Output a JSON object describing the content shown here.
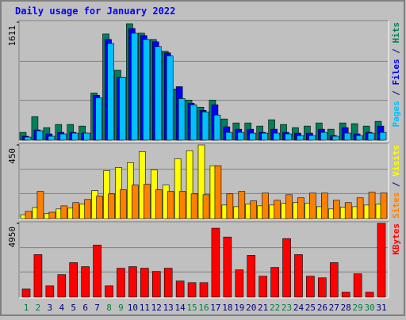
{
  "chart_data": {
    "type": "bar",
    "title": "Daily usage for January 2022",
    "categories": [
      "1",
      "2",
      "3",
      "4",
      "5",
      "6",
      "7",
      "8",
      "9",
      "10",
      "11",
      "12",
      "13",
      "14",
      "15",
      "16",
      "17",
      "18",
      "19",
      "20",
      "21",
      "22",
      "23",
      "24",
      "25",
      "26",
      "27",
      "28",
      "29",
      "30",
      "31"
    ],
    "category_colors": [
      "#008040",
      "#008040",
      "#000080",
      "#000080",
      "#000080",
      "#000080",
      "#000080",
      "#008040",
      "#008040",
      "#000080",
      "#000080",
      "#000080",
      "#000080",
      "#000080",
      "#008040",
      "#008040",
      "#000080",
      "#000080",
      "#000080",
      "#000080",
      "#000080",
      "#008040",
      "#008040",
      "#000080",
      "#000080",
      "#000080",
      "#000080",
      "#000080",
      "#008040",
      "#008040",
      "#000080"
    ],
    "legend_separator": " / ",
    "panels": [
      {
        "ylim": [
          0,
          1611
        ],
        "yticks": [
          1611
        ],
        "series": [
          {
            "name": "Pages",
            "color": "#00c0ff",
            "values": [
              43,
              129,
              54,
              86,
              97,
              97,
              580,
              1321,
              859,
              1460,
              1375,
              1278,
              1149,
              569,
              483,
              387,
              344,
              107,
              107,
              97,
              97,
              97,
              86,
              64,
              64,
              107,
              54,
              97,
              64,
              97,
              107
            ]
          },
          {
            "name": "Files",
            "color": "#0000ff",
            "values": [
              54,
              140,
              86,
              107,
              107,
              97,
              612,
              1375,
              859,
              1525,
              1428,
              1343,
              1192,
              731,
              505,
              408,
              483,
              183,
              150,
              150,
              107,
              150,
              107,
              97,
              97,
              150,
              64,
              172,
              86,
              107,
              193
            ]
          },
          {
            "name": "Hits",
            "color": "#00805c",
            "values": [
              107,
              322,
              172,
              215,
              215,
              193,
              644,
              1450,
              956,
              1590,
              1461,
              1375,
              1214,
              698,
              548,
              451,
              548,
              290,
              236,
              236,
              193,
              279,
              215,
              172,
              193,
              236,
              150,
              236,
              226,
              193,
              258
            ]
          }
        ]
      },
      {
        "ylim": [
          0,
          450
        ],
        "yticks": [
          450
        ],
        "series": [
          {
            "name": "Sites",
            "color": "#ff8000",
            "values": [
              44,
              166,
              39,
              78,
              98,
              117,
              137,
              151,
              176,
              205,
              210,
              176,
              166,
              166,
              151,
              146,
              323,
              151,
              166,
              108,
              156,
              112,
              146,
              127,
              156,
              156,
              112,
              98,
              127,
              161,
              156
            ]
          },
          {
            "name": "Visits",
            "color": "#ffff00",
            "values": [
              24,
              68,
              30,
              59,
              64,
              88,
              171,
              293,
              313,
              342,
              410,
              298,
              205,
              366,
              415,
              450,
              323,
              83,
              73,
              88,
              78,
              83,
              93,
              98,
              93,
              73,
              59,
              69,
              73,
              83,
              88
            ]
          }
        ]
      },
      {
        "ylim": [
          0,
          4950
        ],
        "yticks": [
          4950
        ],
        "series": [
          {
            "name": "KBytes",
            "color": "#ff0000",
            "values": [
              538,
              2851,
              753,
              1506,
              2313,
              2044,
              3497,
              753,
              1937,
              2044,
              1937,
              1722,
              1937,
              1076,
              968,
              968,
              4627,
              4035,
              1829,
              2798,
              1399,
              1991,
              3928,
              2851,
              1399,
              1291,
              2313,
              323,
              1560,
              323,
              4950
            ]
          }
        ]
      }
    ]
  }
}
